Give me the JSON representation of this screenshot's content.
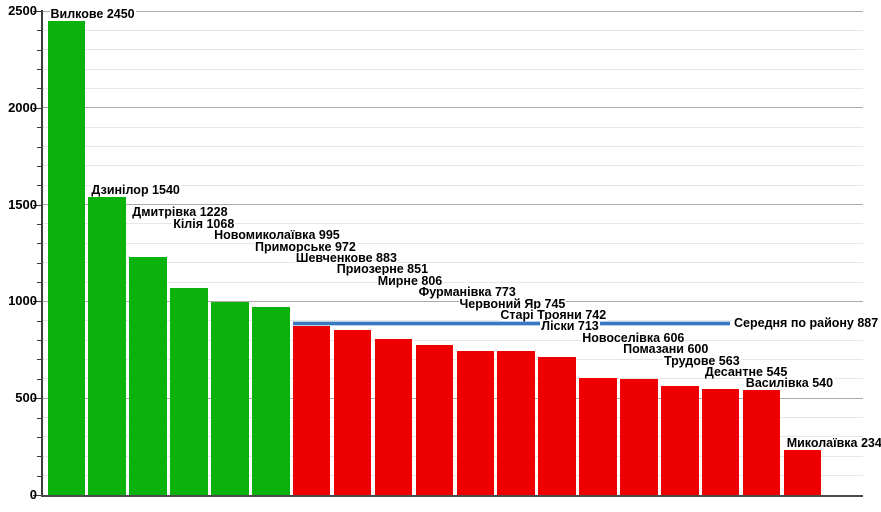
{
  "chart_data": {
    "type": "bar",
    "title": "",
    "xlabel": "",
    "ylabel": "",
    "categories": [
      "Вилкове",
      "Дзинілор",
      "Дмитрівка",
      "Кілія",
      "Новомиколаївка",
      "Приморське",
      "Шевченкове",
      "Приозерне",
      "Мирне",
      "Фурманівка",
      "Червоний Яр",
      "Старі Трояни",
      "Ліски",
      "Новоселівка",
      "Помазани",
      "Трудове",
      "Десантне",
      "Василівка",
      "Миколаївка"
    ],
    "values": [
      2450,
      1540,
      1228,
      1068,
      995,
      972,
      883,
      851,
      806,
      773,
      745,
      742,
      713,
      606,
      600,
      563,
      545,
      540,
      234
    ],
    "average_line": {
      "label": "Середня по району",
      "value": 887
    },
    "ylim": [
      0,
      2500
    ],
    "y_major_ticks": [
      0,
      500,
      1000,
      1500,
      2000,
      2500
    ],
    "y_minor_step": 100,
    "grid": "horizontal",
    "legend_position": "none",
    "colors": {
      "bar_above_average": "#0cb20c",
      "bar_below_average": "#ee0000",
      "average_line": "#3a78c0",
      "average_line_halo": "#b5d0ec",
      "grid_minor": "#e7e7e7",
      "grid_major": "#ababab",
      "axis": "#3c3c3c",
      "label_text": "#000000"
    }
  }
}
